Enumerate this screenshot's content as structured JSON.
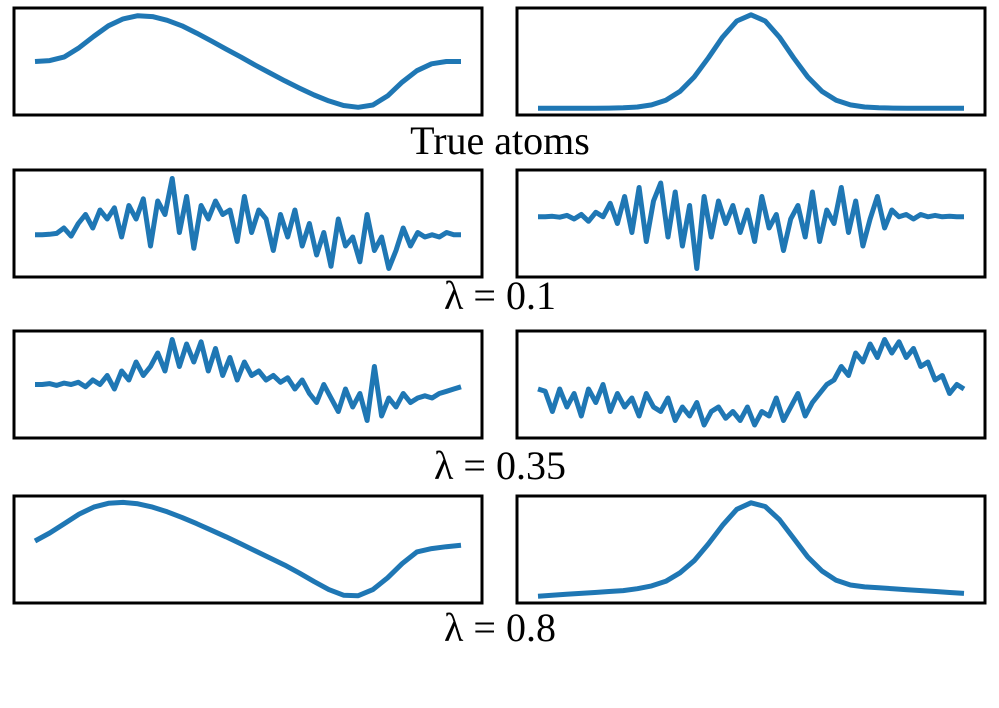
{
  "chart_data": [
    {
      "type": "line",
      "title": "True atoms",
      "ylim": [
        -1.08,
        1.08
      ],
      "series": [
        {
          "color": "#1f77b4",
          "ylim": [
            -1.08,
            1.08
          ],
          "values": [
            0,
            0.02,
            0.1,
            0.3,
            0.55,
            0.78,
            0.93,
            1.0,
            0.98,
            0.9,
            0.78,
            0.62,
            0.45,
            0.27,
            0.1,
            -0.08,
            -0.25,
            -0.42,
            -0.58,
            -0.73,
            -0.86,
            -0.96,
            -1.0,
            -0.95,
            -0.75,
            -0.45,
            -0.2,
            -0.05,
            0.0,
            0.0
          ]
        },
        {
          "color": "#1f77b4",
          "ylim": [
            -0.03,
            1.03
          ],
          "values": [
            0,
            0,
            0,
            0,
            0,
            0.001,
            0.004,
            0.013,
            0.035,
            0.085,
            0.18,
            0.334,
            0.54,
            0.761,
            0.934,
            1,
            0.934,
            0.761,
            0.54,
            0.334,
            0.18,
            0.085,
            0.035,
            0.013,
            0.004,
            0.001,
            0,
            0,
            0,
            0,
            0
          ]
        }
      ]
    },
    {
      "type": "line",
      "title": "λ = 0.1",
      "series": [
        {
          "color": "#1f77b4",
          "ylim": [
            -1.1,
            1.1
          ],
          "values": [
            -0.25,
            -0.25,
            -0.24,
            -0.22,
            -0.1,
            -0.28,
            0.0,
            0.2,
            -0.1,
            0.3,
            0.1,
            0.35,
            -0.3,
            0.4,
            0.1,
            0.55,
            -0.5,
            0.5,
            0.2,
            1.0,
            -0.2,
            0.6,
            -0.55,
            0.4,
            0.1,
            0.5,
            0.2,
            0.3,
            -0.4,
            0.6,
            -0.2,
            0.3,
            0.1,
            -0.6,
            0.2,
            -0.3,
            0.3,
            -0.5,
            0.0,
            -0.7,
            -0.2,
            -0.95,
            0.1,
            -0.5,
            -0.3,
            -0.85,
            0.2,
            -0.6,
            -0.3,
            -1.0,
            -0.6,
            -0.1,
            -0.5,
            -0.2,
            -0.3,
            -0.25,
            -0.3,
            -0.2,
            -0.25,
            -0.25
          ]
        },
        {
          "color": "#1f77b4",
          "ylim": [
            -1.1,
            1.1
          ],
          "values": [
            0.15,
            0.15,
            0.16,
            0.14,
            0.18,
            0.1,
            0.2,
            0.05,
            0.25,
            0.15,
            0.45,
            0.0,
            0.6,
            -0.2,
            0.8,
            -0.4,
            0.5,
            0.9,
            -0.3,
            0.7,
            -0.5,
            0.4,
            -1.0,
            0.6,
            -0.3,
            0.5,
            0.0,
            0.4,
            -0.2,
            0.3,
            -0.4,
            0.6,
            -0.1,
            0.2,
            -0.6,
            0.1,
            0.4,
            -0.3,
            0.7,
            -0.4,
            0.3,
            0.0,
            0.8,
            -0.2,
            0.5,
            -0.5,
            0.1,
            0.6,
            -0.1,
            0.3,
            0.15,
            0.2,
            0.1,
            0.2,
            0.15,
            0.18,
            0.15,
            0.16,
            0.15,
            0.15
          ]
        }
      ]
    },
    {
      "type": "line",
      "title": "λ = 0.35",
      "series": [
        {
          "color": "#1f77b4",
          "ylim": [
            -1.1,
            1.1
          ],
          "values": [
            0.0,
            0.0,
            0.02,
            -0.02,
            0.03,
            0.0,
            0.05,
            -0.05,
            0.1,
            0.0,
            0.2,
            -0.1,
            0.3,
            0.1,
            0.5,
            0.2,
            0.4,
            0.7,
            0.3,
            1.0,
            0.4,
            0.9,
            0.5,
            0.95,
            0.3,
            0.8,
            0.2,
            0.6,
            0.1,
            0.5,
            0.2,
            0.3,
            0.1,
            0.2,
            0.05,
            0.15,
            -0.1,
            0.1,
            -0.2,
            -0.4,
            0.0,
            -0.3,
            -0.6,
            -0.1,
            -0.5,
            -0.2,
            -0.8,
            0.4,
            -0.7,
            -0.3,
            -0.5,
            -0.2,
            -0.4,
            -0.3,
            -0.25,
            -0.3,
            -0.2,
            -0.15,
            -0.1,
            -0.05
          ]
        },
        {
          "color": "#1f77b4",
          "ylim": [
            -1.1,
            1.1
          ],
          "values": [
            -0.1,
            -0.15,
            -0.6,
            -0.1,
            -0.5,
            -0.2,
            -0.7,
            -0.1,
            -0.4,
            0.0,
            -0.6,
            -0.2,
            -0.5,
            -0.3,
            -0.7,
            -0.2,
            -0.5,
            -0.6,
            -0.3,
            -0.8,
            -0.5,
            -0.7,
            -0.4,
            -0.9,
            -0.6,
            -0.5,
            -0.75,
            -0.6,
            -0.8,
            -0.5,
            -0.9,
            -0.6,
            -0.7,
            -0.3,
            -0.8,
            -0.5,
            -0.2,
            -0.7,
            -0.4,
            -0.2,
            0.0,
            0.1,
            0.4,
            0.2,
            0.7,
            0.5,
            0.9,
            0.6,
            1.0,
            0.7,
            0.95,
            0.6,
            0.8,
            0.4,
            0.5,
            0.1,
            0.2,
            -0.2,
            0.0,
            -0.1
          ]
        }
      ]
    },
    {
      "type": "line",
      "title": "λ = 0.8",
      "series": [
        {
          "color": "#1f77b4",
          "ylim": [
            -1.05,
            1.05
          ],
          "values": [
            0.18,
            0.35,
            0.55,
            0.75,
            0.9,
            0.98,
            1.0,
            0.97,
            0.9,
            0.8,
            0.68,
            0.55,
            0.41,
            0.27,
            0.12,
            -0.03,
            -0.18,
            -0.33,
            -0.5,
            -0.68,
            -0.85,
            -0.97,
            -0.98,
            -0.85,
            -0.6,
            -0.3,
            -0.05,
            0.02,
            0.06,
            0.09
          ]
        },
        {
          "color": "#1f77b4",
          "ylim": [
            -0.03,
            1.03
          ],
          "values": [
            0,
            0.01,
            0.02,
            0.03,
            0.04,
            0.05,
            0.06,
            0.08,
            0.11,
            0.16,
            0.25,
            0.38,
            0.56,
            0.76,
            0.93,
            1.0,
            0.96,
            0.82,
            0.62,
            0.42,
            0.27,
            0.17,
            0.12,
            0.1,
            0.09,
            0.08,
            0.07,
            0.06,
            0.05,
            0.04,
            0.03
          ]
        }
      ]
    }
  ]
}
